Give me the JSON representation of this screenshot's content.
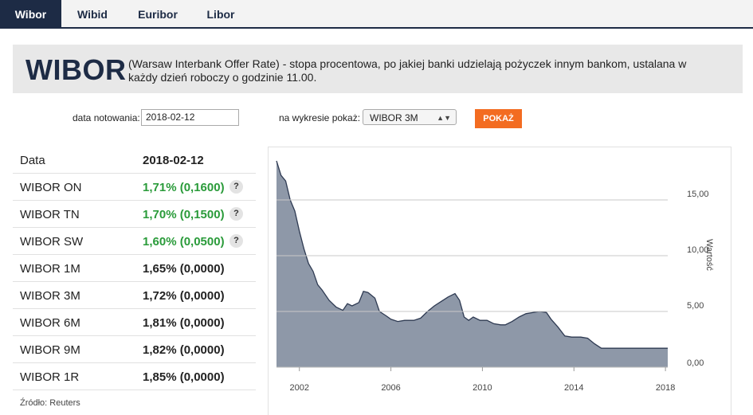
{
  "tabs": [
    {
      "label": "Wibor",
      "active": true
    },
    {
      "label": "Wibid",
      "active": false
    },
    {
      "label": "Euribor",
      "active": false
    },
    {
      "label": "Libor",
      "active": false
    }
  ],
  "banner": {
    "title": "WIBOR",
    "description": "(Warsaw Interbank Offer Rate) - stopa procentowa, po jakiej banki udzielają pożyczek innym bankom, ustalana w każdy dzień roboczy o godzinie 11.00."
  },
  "form": {
    "date_label": "data notowania:",
    "date_value": "2018-02-12",
    "chart_label": "na wykresie pokaż:",
    "chart_select_value": "WIBOR 3M",
    "show_button": "POKAŻ"
  },
  "table": {
    "header": {
      "name": "Data",
      "value": "2018-02-12"
    },
    "rows": [
      {
        "name": "WIBOR ON",
        "value": "1,71% (0,1600)",
        "trend": "up",
        "help": "?"
      },
      {
        "name": "WIBOR TN",
        "value": "1,70% (0,1500)",
        "trend": "up",
        "help": "?"
      },
      {
        "name": "WIBOR SW",
        "value": "1,60% (0,0500)",
        "trend": "up",
        "help": "?"
      },
      {
        "name": "WIBOR 1M",
        "value": "1,65% (0,0000)",
        "trend": "flat"
      },
      {
        "name": "WIBOR 3M",
        "value": "1,72% (0,0000)",
        "trend": "flat"
      },
      {
        "name": "WIBOR 6M",
        "value": "1,81% (0,0000)",
        "trend": "flat"
      },
      {
        "name": "WIBOR 9M",
        "value": "1,82% (0,0000)",
        "trend": "flat"
      },
      {
        "name": "WIBOR 1R",
        "value": "1,85% (0,0000)",
        "trend": "flat"
      }
    ],
    "source": "Źródło: Reuters"
  },
  "colors": {
    "navy": "#1d2b45",
    "accent_orange": "#f36c21",
    "up_green": "#2a9b3a",
    "chart_fill": "#8e98a8",
    "chart_line": "#2e3a52"
  },
  "chart_data": {
    "type": "area",
    "series_label": "WIBOR 3M",
    "ylabel": "Wartość",
    "ylim": [
      0,
      18.5
    ],
    "xlim": [
      2001,
      2018.1
    ],
    "y_ticks": [
      "0,00",
      "5,00",
      "10,00",
      "15,00"
    ],
    "y_tick_values": [
      0,
      5,
      10,
      15
    ],
    "x_ticks": [
      "2002",
      "2006",
      "2010",
      "2014",
      "2018"
    ],
    "x_tick_values": [
      2002,
      2006,
      2010,
      2014,
      2018
    ],
    "x": [
      2001.0,
      2001.2,
      2001.4,
      2001.6,
      2001.8,
      2002.0,
      2002.2,
      2002.4,
      2002.6,
      2002.8,
      2003.0,
      2003.3,
      2003.6,
      2003.9,
      2004.1,
      2004.3,
      2004.6,
      2004.8,
      2005.0,
      2005.3,
      2005.5,
      2005.8,
      2006.0,
      2006.3,
      2006.6,
      2007.0,
      2007.3,
      2007.6,
      2007.9,
      2008.2,
      2008.5,
      2008.8,
      2009.0,
      2009.2,
      2009.4,
      2009.6,
      2009.9,
      2010.2,
      2010.5,
      2010.8,
      2011.0,
      2011.3,
      2011.6,
      2011.9,
      2012.2,
      2012.5,
      2012.8,
      2013.0,
      2013.3,
      2013.6,
      2013.9,
      2014.3,
      2014.6,
      2014.9,
      2015.2,
      2015.6,
      2016.0,
      2016.5,
      2017.0,
      2017.5,
      2018.1
    ],
    "values": [
      18.5,
      17.2,
      16.7,
      15.0,
      14.0,
      12.2,
      10.6,
      9.3,
      8.6,
      7.4,
      6.9,
      6.0,
      5.4,
      5.1,
      5.7,
      5.5,
      5.8,
      6.8,
      6.7,
      6.2,
      5.0,
      4.6,
      4.3,
      4.1,
      4.2,
      4.2,
      4.4,
      5.0,
      5.5,
      5.9,
      6.3,
      6.6,
      6.0,
      4.5,
      4.2,
      4.5,
      4.2,
      4.2,
      3.9,
      3.8,
      3.8,
      4.1,
      4.5,
      4.8,
      4.9,
      5.0,
      4.9,
      4.3,
      3.6,
      2.8,
      2.7,
      2.7,
      2.6,
      2.1,
      1.7,
      1.7,
      1.7,
      1.7,
      1.7,
      1.7,
      1.7
    ]
  }
}
